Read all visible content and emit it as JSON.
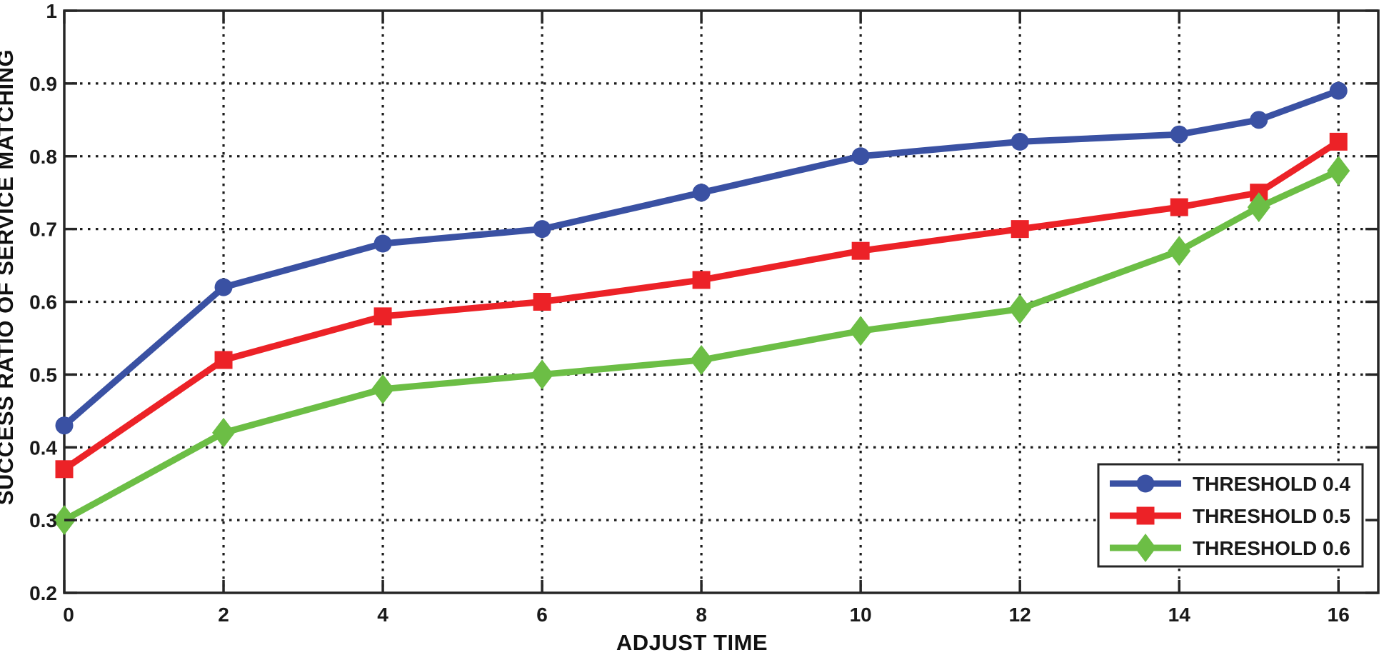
{
  "figure": {
    "background": "#ffffff"
  },
  "chart_data": {
    "type": "line",
    "title": "",
    "xlabel": "ADJUST TIME",
    "ylabel": "SUCCESS RATIO OF SERVICE MATCHING",
    "xlim": [
      0,
      16.5
    ],
    "ylim": [
      0.2,
      1.0
    ],
    "x_ticks": [
      0,
      2,
      4,
      6,
      8,
      10,
      12,
      14,
      16
    ],
    "x_tick_labels": [
      "0",
      "2",
      "4",
      "6",
      "8",
      "10",
      "12",
      "14",
      "16"
    ],
    "y_ticks": [
      0.2,
      0.3,
      0.4,
      0.5,
      0.6,
      0.7,
      0.8,
      0.9,
      1.0
    ],
    "y_tick_labels": [
      "0.2",
      "0.3",
      "0.4",
      "0.5",
      "0.6",
      "0.7",
      "0.8",
      "0.9",
      "1"
    ],
    "grid": "dotted",
    "grid_color": "#1c1c1c",
    "axis_color": "#262626",
    "legend_position": "lower right",
    "x": [
      0,
      2,
      4,
      6,
      8,
      10,
      12,
      14,
      15,
      16
    ],
    "series": [
      {
        "name": "THRESHOLD 0.4",
        "color": "#3A51A3",
        "marker": "circle",
        "values": [
          0.43,
          0.62,
          0.68,
          0.7,
          0.75,
          0.8,
          0.82,
          0.83,
          0.85,
          0.89
        ]
      },
      {
        "name": "THRESHOLD 0.5",
        "color": "#EC2227",
        "marker": "square",
        "values": [
          0.37,
          0.52,
          0.58,
          0.6,
          0.63,
          0.67,
          0.7,
          0.73,
          0.75,
          0.82
        ]
      },
      {
        "name": "THRESHOLD 0.6",
        "color": "#6CBE45",
        "marker": "diamond",
        "values": [
          0.3,
          0.42,
          0.48,
          0.5,
          0.52,
          0.56,
          0.59,
          0.67,
          0.73,
          0.78
        ]
      }
    ]
  }
}
